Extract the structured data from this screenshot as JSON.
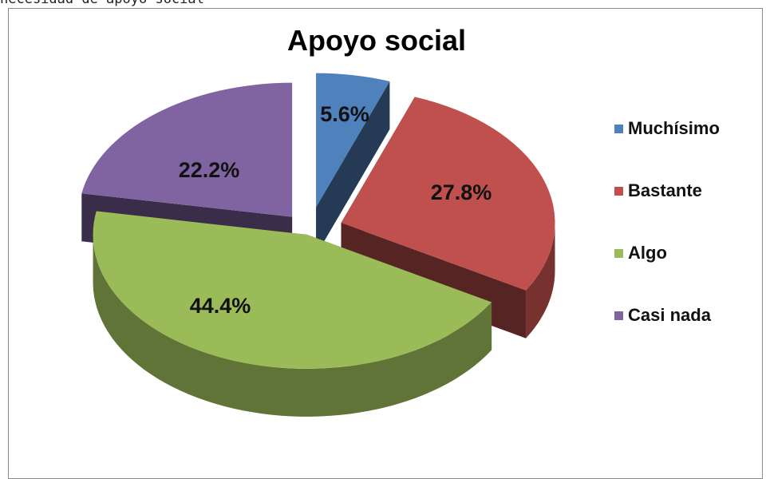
{
  "page": {
    "caption": "necesidad de apoyo social"
  },
  "chart_data": {
    "type": "pie",
    "title": "Apoyo social",
    "legend_position": "right",
    "style": "3d-exploded",
    "slices": [
      {
        "label": "Muchísimo",
        "value": 5.6,
        "value_label": "5.6%",
        "color": "#4f81bd"
      },
      {
        "label": "Bastante",
        "value": 27.8,
        "value_label": "27.8%",
        "color": "#c0504d"
      },
      {
        "label": "Algo",
        "value": 44.4,
        "value_label": "44.4%",
        "color": "#9bbb59"
      },
      {
        "label": "Casi nada",
        "value": 22.2,
        "value_label": "22.2%",
        "color": "#8064a2"
      }
    ]
  }
}
